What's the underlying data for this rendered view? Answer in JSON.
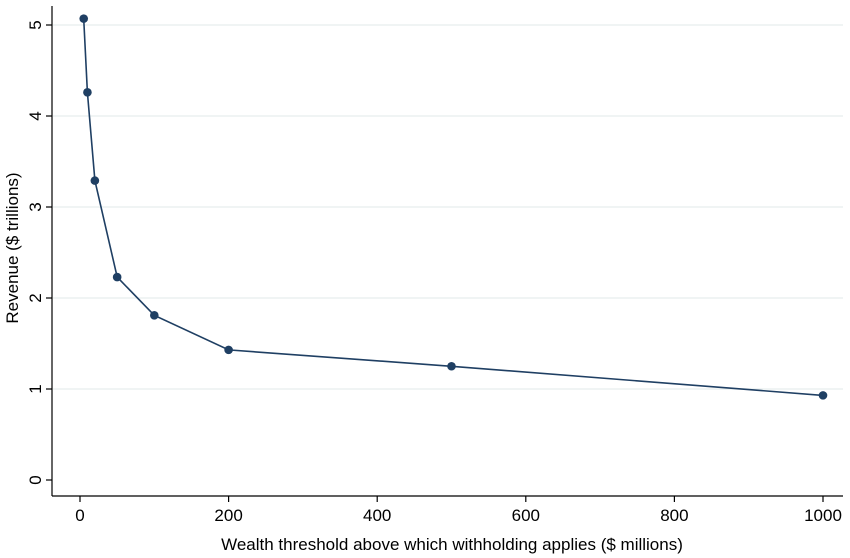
{
  "chart_data": {
    "type": "line",
    "title": "",
    "xlabel": "Wealth threshold above which withholding applies ($ millions)",
    "ylabel": "Revenue ($ trillions)",
    "xlim": [
      0,
      1000
    ],
    "ylim": [
      0,
      5
    ],
    "xticks": [
      0,
      200,
      400,
      600,
      800,
      1000
    ],
    "yticks": [
      0,
      1,
      2,
      3,
      4,
      5
    ],
    "grid": "horizontal",
    "line_color": "#1f3f63",
    "marker_color": "#1f3f63",
    "grid_color": "#e6eeee",
    "series": [
      {
        "x": [
          5,
          10,
          20,
          50,
          100,
          200,
          500,
          1000
        ],
        "y": [
          5.07,
          4.26,
          3.29,
          2.23,
          1.81,
          1.43,
          1.25,
          0.93
        ]
      }
    ]
  }
}
